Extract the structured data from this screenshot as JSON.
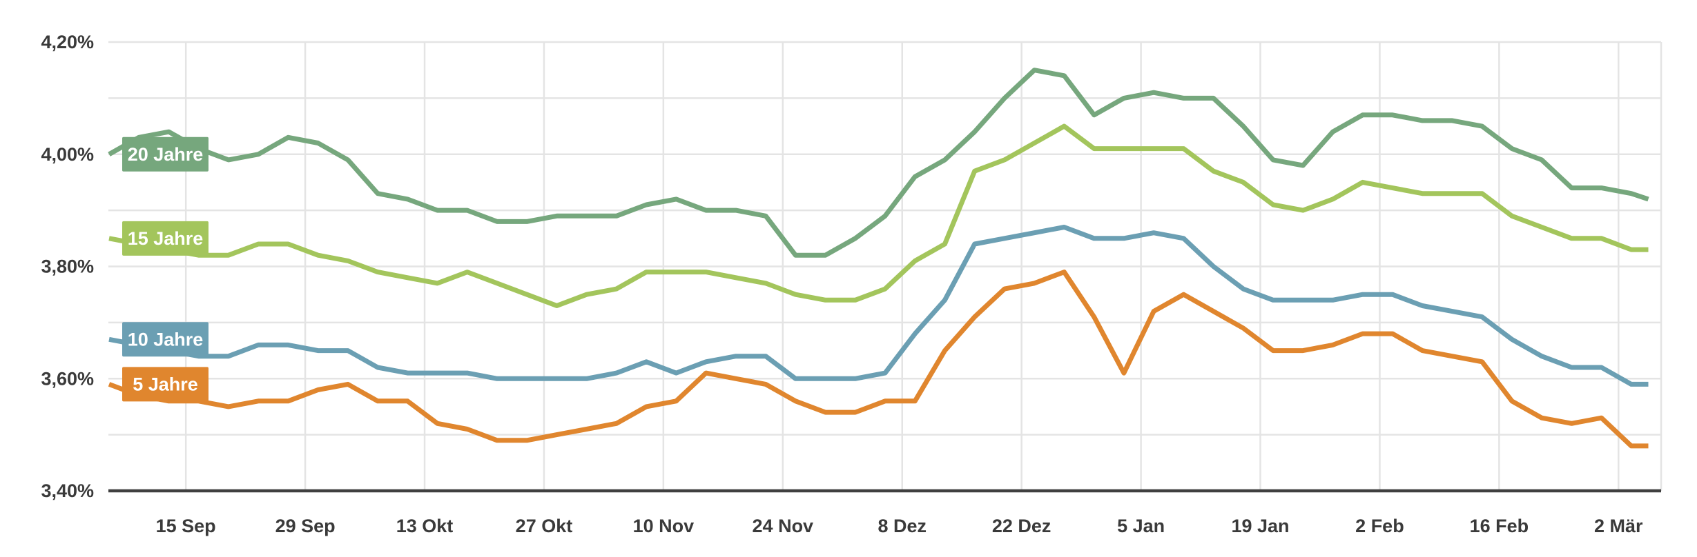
{
  "chart_data": {
    "type": "line",
    "title": "",
    "xlabel": "",
    "ylabel": "",
    "grid": true,
    "legend_position": "left-inline-badges",
    "colors": {
      "background": "#ffffff",
      "gridline": "#e4e4e4",
      "axis_line": "#3f3f3f",
      "label_text": "#3a3a3a",
      "badge_text": "#ffffff"
    },
    "y_axis": {
      "min": 3.4,
      "max": 4.2,
      "gridline_step_pct": 0.1,
      "tick_labels": [
        "4,20%",
        "4,00%",
        "3,80%",
        "3,60%",
        "3,40%"
      ],
      "tick_values": [
        4.2,
        4.0,
        3.8,
        3.6,
        3.4
      ],
      "gridline_values": [
        4.2,
        4.1,
        4.0,
        3.9,
        3.8,
        3.7,
        3.6,
        3.5
      ]
    },
    "x_axis": {
      "tick_labels": [
        "15 Sep",
        "29 Sep",
        "13 Okt",
        "27 Okt",
        "10 Nov",
        "24 Nov",
        "8 Dez",
        "22 Dez",
        "5 Jan",
        "19 Jan",
        "2 Feb",
        "16 Feb",
        "2 Mär"
      ],
      "tick_day_offsets": [
        9,
        23,
        37,
        51,
        65,
        79,
        93,
        107,
        121,
        135,
        149,
        163,
        177
      ],
      "right_boundary_day_offset": 182
    },
    "sample_day_offsets": [
      0,
      3.5,
      7,
      10.5,
      14,
      17.5,
      21,
      24.5,
      28,
      31.5,
      35,
      38.5,
      42,
      45.5,
      49,
      52.5,
      56,
      59.5,
      63,
      66.5,
      70,
      73.5,
      77,
      80.5,
      84,
      87.5,
      91,
      94.5,
      98,
      101.5,
      105,
      108.5,
      112,
      115.5,
      119,
      122.5,
      126,
      129.5,
      133,
      136.5,
      140,
      143.5,
      147,
      150.5,
      154,
      157.5,
      161,
      164.5,
      168,
      171.5,
      175,
      178.5,
      180.5
    ],
    "series": [
      {
        "name": "20 Jahre",
        "id": "20-jahre",
        "color": "#76a77d",
        "badge_value": 4.0,
        "values": [
          4.0,
          4.03,
          4.04,
          4.01,
          3.99,
          4.0,
          4.03,
          4.02,
          3.99,
          3.93,
          3.92,
          3.9,
          3.9,
          3.88,
          3.88,
          3.89,
          3.89,
          3.89,
          3.91,
          3.92,
          3.9,
          3.9,
          3.89,
          3.82,
          3.82,
          3.85,
          3.89,
          3.96,
          3.99,
          4.04,
          4.1,
          4.15,
          4.14,
          4.07,
          4.1,
          4.11,
          4.1,
          4.1,
          4.05,
          3.99,
          3.98,
          4.04,
          4.07,
          4.07,
          4.06,
          4.06,
          4.05,
          4.01,
          3.99,
          3.94,
          3.94,
          3.93,
          3.92
        ]
      },
      {
        "name": "15 Jahre",
        "id": "15-jahre",
        "color": "#a3c55c",
        "badge_value": 3.85,
        "values": [
          3.85,
          3.84,
          3.83,
          3.82,
          3.82,
          3.84,
          3.84,
          3.82,
          3.81,
          3.79,
          3.78,
          3.77,
          3.79,
          3.77,
          3.75,
          3.73,
          3.75,
          3.76,
          3.79,
          3.79,
          3.79,
          3.78,
          3.77,
          3.75,
          3.74,
          3.74,
          3.76,
          3.81,
          3.84,
          3.97,
          3.99,
          4.02,
          4.05,
          4.01,
          4.01,
          4.01,
          4.01,
          3.97,
          3.95,
          3.91,
          3.9,
          3.92,
          3.95,
          3.94,
          3.93,
          3.93,
          3.93,
          3.89,
          3.87,
          3.85,
          3.85,
          3.83,
          3.83
        ]
      },
      {
        "name": "10 Jahre",
        "id": "10-jahre",
        "color": "#6b9fb3",
        "badge_value": 3.67,
        "values": [
          3.67,
          3.66,
          3.65,
          3.64,
          3.64,
          3.66,
          3.66,
          3.65,
          3.65,
          3.62,
          3.61,
          3.61,
          3.61,
          3.6,
          3.6,
          3.6,
          3.6,
          3.61,
          3.63,
          3.61,
          3.63,
          3.64,
          3.64,
          3.6,
          3.6,
          3.6,
          3.61,
          3.68,
          3.74,
          3.84,
          3.85,
          3.86,
          3.87,
          3.85,
          3.85,
          3.86,
          3.85,
          3.8,
          3.76,
          3.74,
          3.74,
          3.74,
          3.75,
          3.75,
          3.73,
          3.72,
          3.71,
          3.67,
          3.64,
          3.62,
          3.62,
          3.59,
          3.59
        ]
      },
      {
        "name": "5 Jahre",
        "id": "5-jahre",
        "color": "#e0862e",
        "badge_value": 3.59,
        "values": [
          3.59,
          3.57,
          3.56,
          3.56,
          3.55,
          3.56,
          3.56,
          3.58,
          3.59,
          3.56,
          3.56,
          3.52,
          3.51,
          3.49,
          3.49,
          3.5,
          3.51,
          3.52,
          3.55,
          3.56,
          3.61,
          3.6,
          3.59,
          3.56,
          3.54,
          3.54,
          3.56,
          3.56,
          3.65,
          3.71,
          3.76,
          3.77,
          3.79,
          3.71,
          3.61,
          3.72,
          3.75,
          3.72,
          3.69,
          3.65,
          3.65,
          3.66,
          3.68,
          3.68,
          3.65,
          3.64,
          3.63,
          3.56,
          3.53,
          3.52,
          3.53,
          3.48,
          3.48
        ]
      }
    ]
  }
}
